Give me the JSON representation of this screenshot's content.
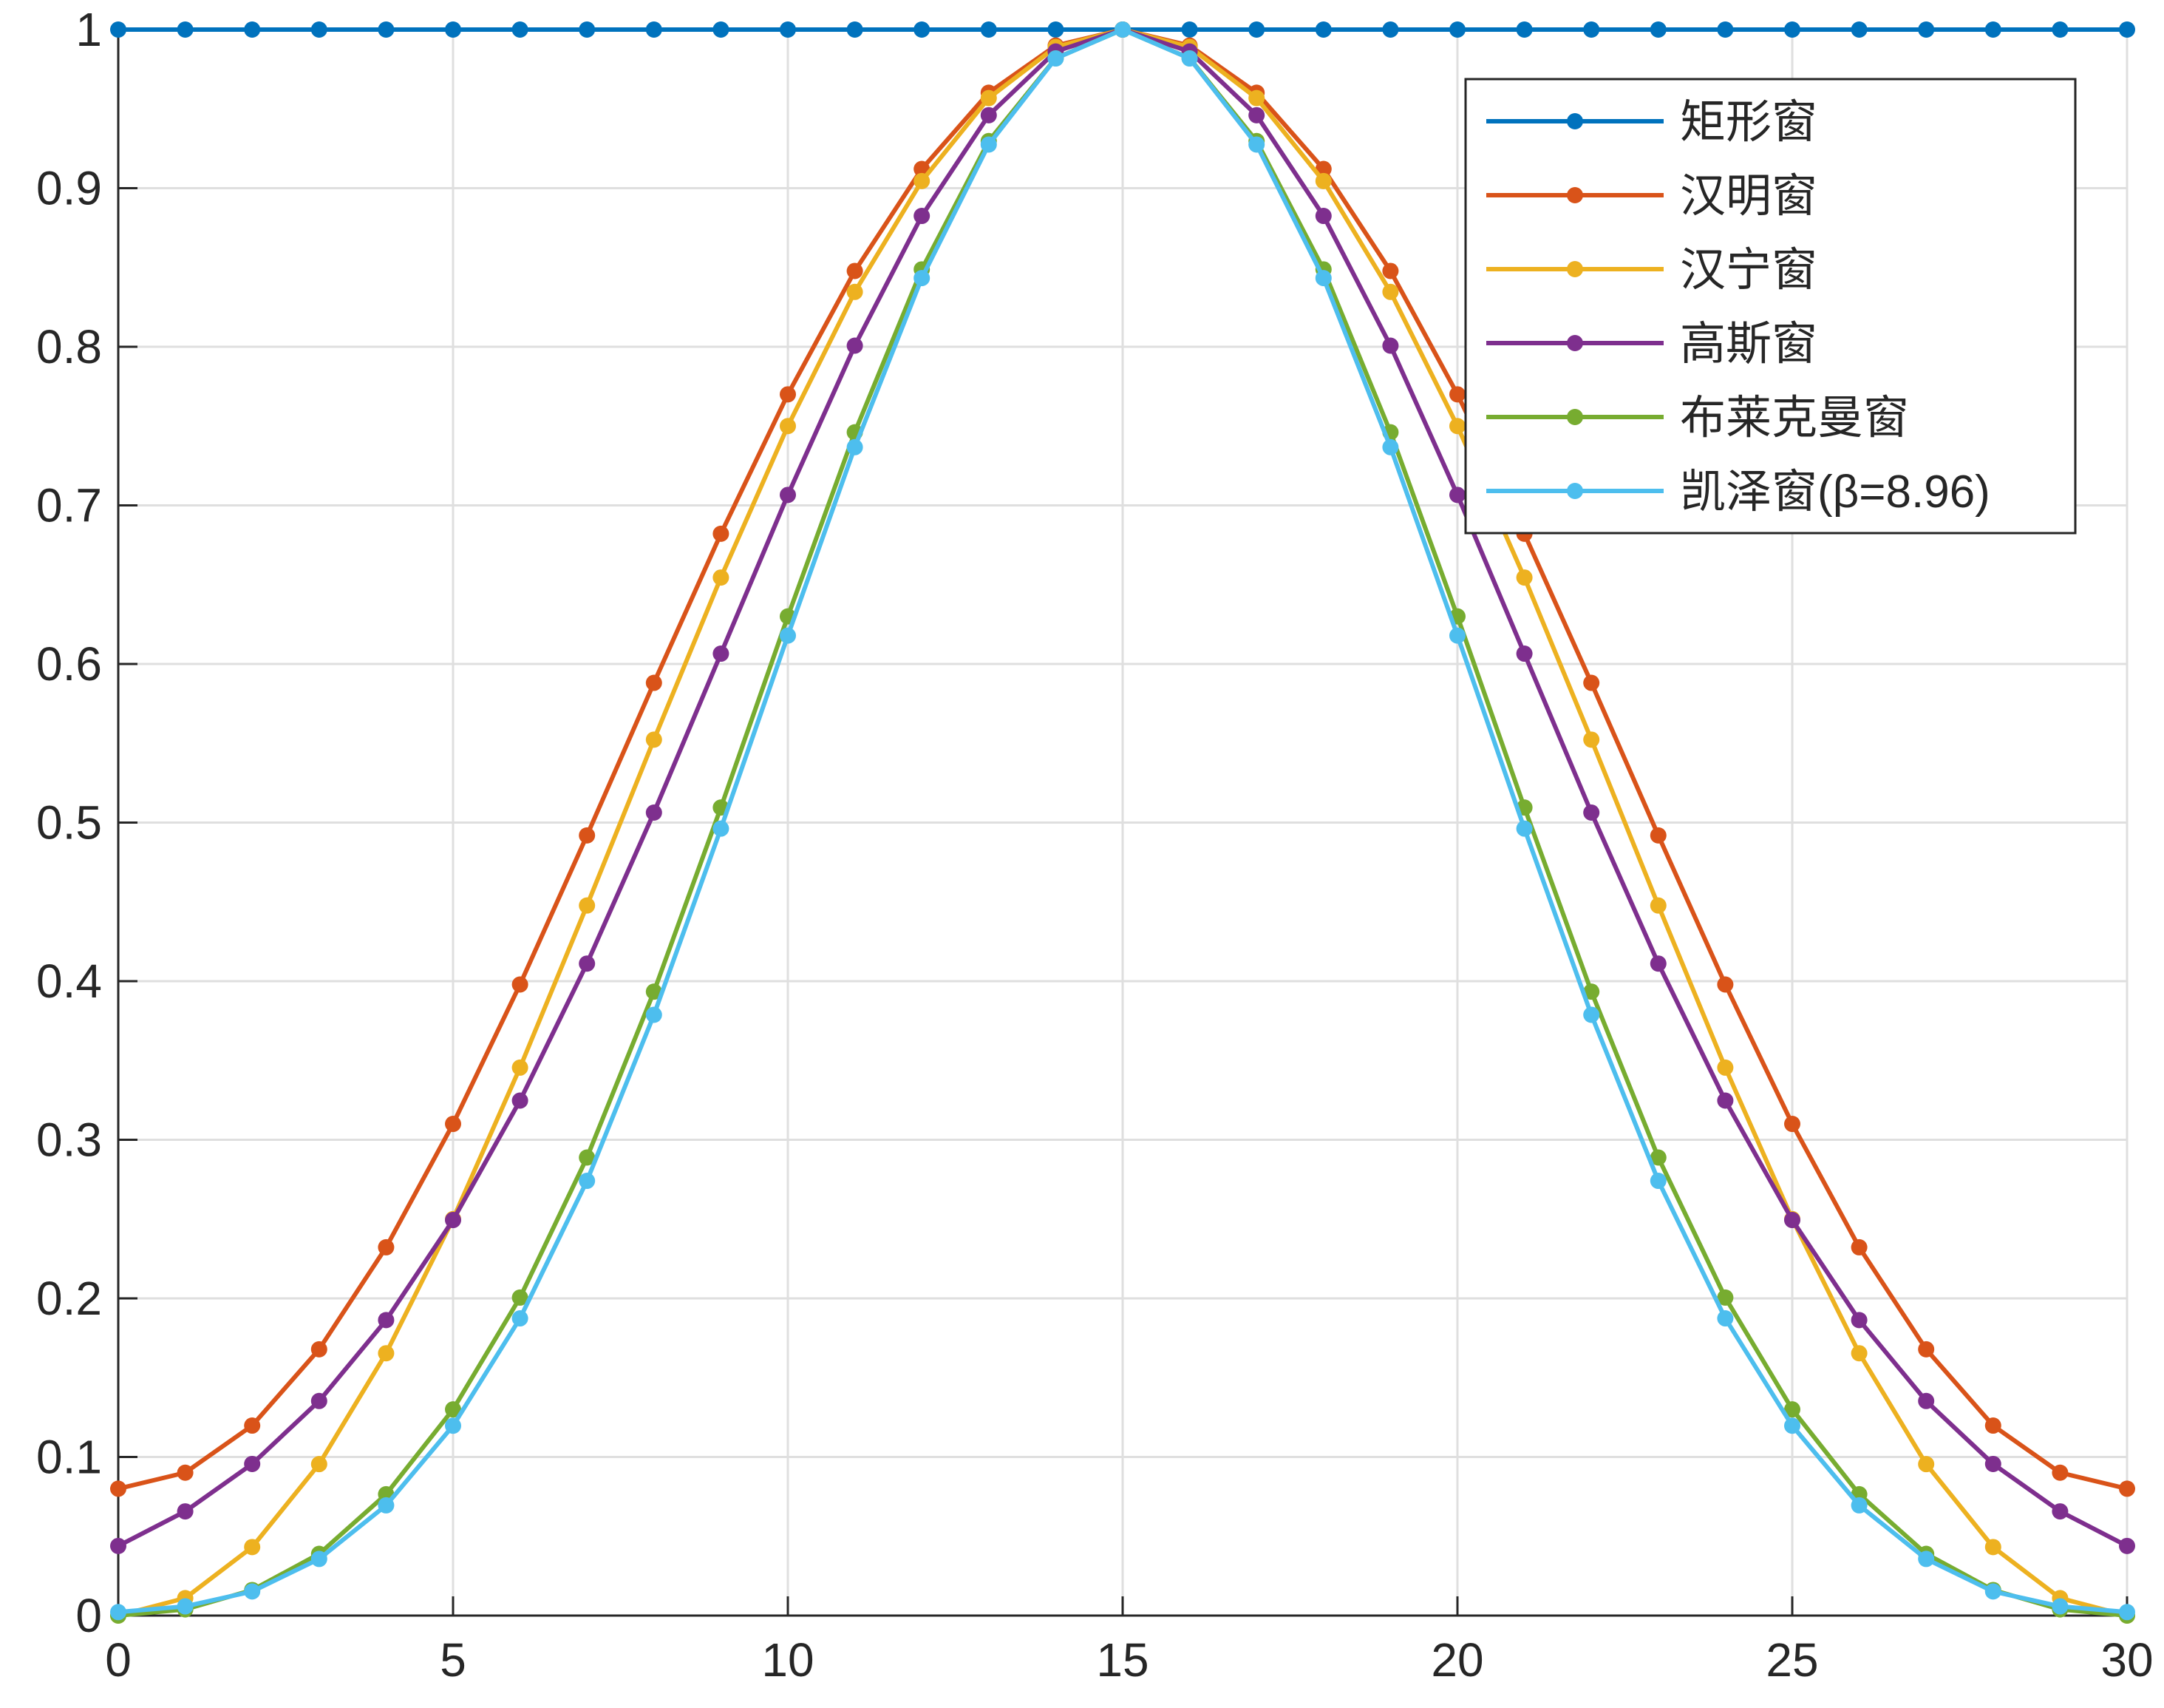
{
  "chart_data": {
    "type": "line",
    "title": "",
    "xlabel": "",
    "ylabel": "",
    "xlim": [
      0,
      30
    ],
    "ylim": [
      0,
      1
    ],
    "xticks": [
      "0",
      "5",
      "10",
      "15",
      "20",
      "25",
      "30"
    ],
    "yticks": [
      "0",
      "0.1",
      "0.2",
      "0.3",
      "0.4",
      "0.5",
      "0.6",
      "0.7",
      "0.8",
      "0.9",
      "1"
    ],
    "grid": true,
    "legend_position": "top-right",
    "x": [
      0,
      1,
      2,
      3,
      4,
      5,
      6,
      7,
      8,
      9,
      10,
      11,
      12,
      13,
      14,
      15,
      16,
      17,
      18,
      19,
      20,
      21,
      22,
      23,
      24,
      25,
      26,
      27,
      28,
      29,
      30
    ],
    "series": [
      {
        "name": "矩形窗",
        "color": "#0072BD",
        "values": [
          1,
          1,
          1,
          1,
          1,
          1,
          1,
          1,
          1,
          1,
          1,
          1,
          1,
          1,
          1,
          1,
          1,
          1,
          1,
          1,
          1,
          1,
          1,
          1,
          1,
          1,
          1,
          1,
          1,
          1,
          1
        ]
      },
      {
        "name": "汉明窗",
        "color": "#D95319",
        "values": [
          0.08,
          0.0901,
          0.1198,
          0.1679,
          0.2322,
          0.31,
          0.3979,
          0.4919,
          0.5881,
          0.6821,
          0.77,
          0.8478,
          0.9121,
          0.9602,
          0.9899,
          1,
          0.9899,
          0.9602,
          0.9121,
          0.8478,
          0.77,
          0.6821,
          0.5881,
          0.4919,
          0.3979,
          0.31,
          0.2322,
          0.1679,
          0.1198,
          0.0901,
          0.08
        ]
      },
      {
        "name": "汉宁窗",
        "color": "#EDB120",
        "values": [
          0,
          0.011,
          0.0432,
          0.0955,
          0.1654,
          0.25,
          0.3455,
          0.4477,
          0.5523,
          0.6545,
          0.75,
          0.8346,
          0.9045,
          0.9568,
          0.989,
          1,
          0.989,
          0.9568,
          0.9045,
          0.8346,
          0.75,
          0.6545,
          0.5523,
          0.4477,
          0.3455,
          0.25,
          0.1654,
          0.0955,
          0.0432,
          0.011,
          0
        ]
      },
      {
        "name": "高斯窗",
        "color": "#7E2F8E",
        "values": [
          0.0439,
          0.0657,
          0.0956,
          0.1353,
          0.1863,
          0.2494,
          0.3247,
          0.4111,
          0.5063,
          0.6065,
          0.7066,
          0.8007,
          0.8825,
          0.946,
          0.9862,
          1,
          0.9862,
          0.946,
          0.8825,
          0.8007,
          0.7066,
          0.6065,
          0.5063,
          0.4111,
          0.3247,
          0.2494,
          0.1863,
          0.1353,
          0.0956,
          0.0657,
          0.0439
        ]
      },
      {
        "name": "布莱克曼窗",
        "color": "#77AC30",
        "values": [
          0,
          0.0039,
          0.0161,
          0.0389,
          0.0765,
          0.13,
          0.2005,
          0.2888,
          0.3934,
          0.5095,
          0.63,
          0.7461,
          0.8488,
          0.9297,
          0.9819,
          1,
          0.9819,
          0.9297,
          0.8488,
          0.7461,
          0.63,
          0.5095,
          0.3934,
          0.2888,
          0.2005,
          0.13,
          0.0765,
          0.0389,
          0.0161,
          0.0039,
          0
        ]
      },
      {
        "name": "凯泽窗(β=8.96)",
        "color": "#4DBEEE",
        "values": [
          0.0022,
          0.0058,
          0.0152,
          0.0357,
          0.0695,
          0.1197,
          0.1874,
          0.2741,
          0.3788,
          0.4962,
          0.6179,
          0.7367,
          0.8433,
          0.9275,
          0.9818,
          1,
          0.9818,
          0.9275,
          0.8433,
          0.7367,
          0.6179,
          0.4962,
          0.3788,
          0.2741,
          0.1874,
          0.1197,
          0.0695,
          0.0357,
          0.0152,
          0.0058,
          0.0022
        ]
      }
    ]
  }
}
